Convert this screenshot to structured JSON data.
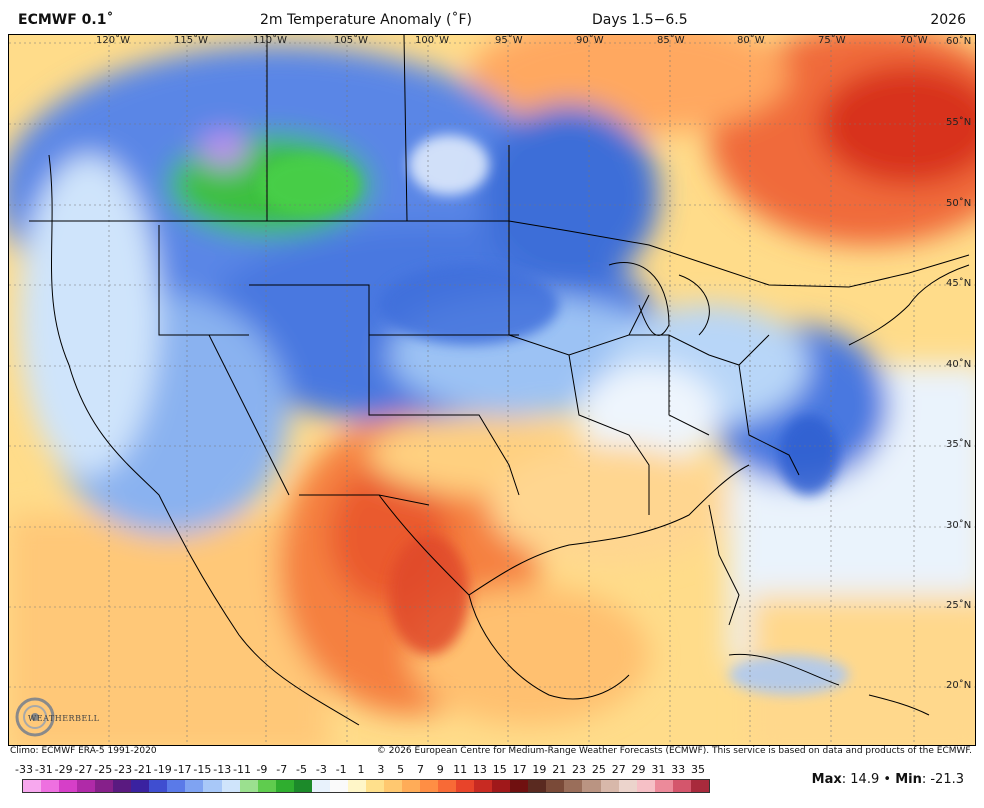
{
  "header": {
    "model": "ECMWF 0.1˚",
    "title": "2m Temperature Anomaly (˚F)",
    "days": "Days 1.5−6.5",
    "year": "2026"
  },
  "footer": {
    "climo": "Climo: ECMWF ERA-5 1991-2020",
    "copyright": "© 2026 European Centre for Medium-Range Weather Forecasts (ECMWF). This service is based on data and products of the ECMWF."
  },
  "logo": {
    "text": "WEATHERBELL"
  },
  "stats": {
    "max_label": "Max",
    "max": "14.9",
    "sep": "•",
    "min_label": "Min",
    "min": "-21.3"
  },
  "map": {
    "lon_labels": [
      "120˚W",
      "115˚W",
      "110˚W",
      "105˚W",
      "100˚W",
      "95˚W",
      "90˚W",
      "85˚W",
      "80˚W",
      "75˚W",
      "70˚W"
    ],
    "lat_labels": [
      "60˚N",
      "55˚N",
      "50˚N",
      "45˚N",
      "40˚N",
      "35˚N",
      "30˚N",
      "25˚N",
      "20˚N"
    ]
  },
  "legend": {
    "labels": [
      "-33",
      "-31",
      "-29",
      "-27",
      "-25",
      "-23",
      "-21",
      "-19",
      "-17",
      "-15",
      "-13",
      "-11",
      "-9",
      "-7",
      "-5",
      "-3",
      "-1",
      "1",
      "3",
      "5",
      "7",
      "9",
      "11",
      "13",
      "15",
      "17",
      "19",
      "21",
      "23",
      "25",
      "27",
      "29",
      "31",
      "33",
      "35"
    ],
    "colors": [
      "#f7a8ee",
      "#ee70e0",
      "#d63fc8",
      "#b02aa8",
      "#86208a",
      "#5a1a80",
      "#3a22a0",
      "#3f4ed0",
      "#5a7ae8",
      "#7fa3f2",
      "#a8c8f8",
      "#cfe4fb",
      "#9be08f",
      "#5fcc4e",
      "#2fae2f",
      "#1c8a2a",
      "#e8f2fc",
      "#fafafa",
      "#fff6c8",
      "#ffe08c",
      "#ffc870",
      "#ffac58",
      "#ff8e44",
      "#f86a36",
      "#e8442a",
      "#c82a22",
      "#a0181a",
      "#701010",
      "#5a2a20",
      "#7a4a38",
      "#9a6e5a",
      "#ba9482",
      "#d8b8aa",
      "#ecd4cc",
      "#f6c0c6",
      "#ec8a9a",
      "#d4566c",
      "#a82a3c"
    ]
  }
}
